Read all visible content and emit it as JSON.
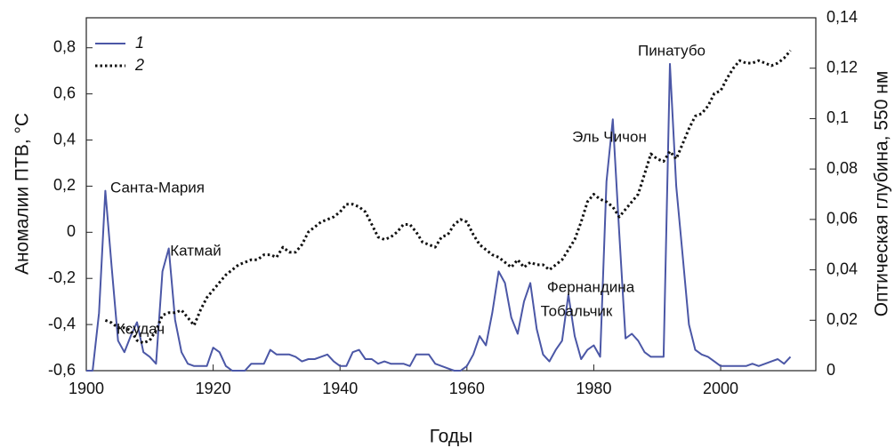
{
  "chart_data": {
    "type": "line",
    "xlabel": "Годы",
    "ylabel": "Аномалии ПТВ, °С",
    "y2label": "Оптическая глубина, 550 нм",
    "x": [
      1900,
      1901,
      1902,
      1903,
      1904,
      1905,
      1906,
      1907,
      1908,
      1909,
      1910,
      1911,
      1912,
      1913,
      1914,
      1915,
      1916,
      1917,
      1918,
      1919,
      1920,
      1921,
      1922,
      1923,
      1924,
      1925,
      1926,
      1927,
      1928,
      1929,
      1930,
      1931,
      1932,
      1933,
      1934,
      1935,
      1936,
      1937,
      1938,
      1939,
      1940,
      1941,
      1942,
      1943,
      1944,
      1945,
      1946,
      1947,
      1948,
      1949,
      1950,
      1951,
      1952,
      1953,
      1954,
      1955,
      1956,
      1957,
      1958,
      1959,
      1960,
      1961,
      1962,
      1963,
      1964,
      1965,
      1966,
      1967,
      1968,
      1969,
      1970,
      1971,
      1972,
      1973,
      1974,
      1975,
      1976,
      1977,
      1978,
      1979,
      1980,
      1981,
      1982,
      1983,
      1984,
      1985,
      1986,
      1987,
      1988,
      1989,
      1990,
      1991,
      1992,
      1993,
      1994,
      1995,
      1996,
      1997,
      1998,
      1999,
      2000,
      2001,
      2002,
      2003,
      2004,
      2005,
      2006,
      2007,
      2008,
      2009,
      2010,
      2011
    ],
    "series": [
      {
        "name": "1",
        "color": "#4b57a6",
        "values": [
          -0.6,
          -0.6,
          -0.35,
          0.18,
          -0.15,
          -0.47,
          -0.52,
          -0.45,
          -0.39,
          -0.52,
          -0.54,
          -0.57,
          -0.17,
          -0.07,
          -0.38,
          -0.52,
          -0.57,
          -0.58,
          -0.58,
          -0.58,
          -0.5,
          -0.52,
          -0.58,
          -0.6,
          -0.6,
          -0.6,
          -0.57,
          -0.57,
          -0.57,
          -0.51,
          -0.53,
          -0.53,
          -0.53,
          -0.54,
          -0.56,
          -0.55,
          -0.55,
          -0.54,
          -0.53,
          -0.56,
          -0.58,
          -0.58,
          -0.52,
          -0.51,
          -0.55,
          -0.55,
          -0.57,
          -0.56,
          -0.57,
          -0.57,
          -0.57,
          -0.58,
          -0.53,
          -0.53,
          -0.53,
          -0.57,
          -0.58,
          -0.59,
          -0.6,
          -0.6,
          -0.58,
          -0.53,
          -0.45,
          -0.49,
          -0.35,
          -0.17,
          -0.22,
          -0.37,
          -0.44,
          -0.3,
          -0.22,
          -0.42,
          -0.53,
          -0.56,
          -0.51,
          -0.47,
          -0.27,
          -0.45,
          -0.55,
          -0.51,
          -0.49,
          -0.54,
          0.22,
          0.49,
          0.0,
          -0.46,
          -0.44,
          -0.47,
          -0.52,
          -0.54,
          -0.54,
          -0.54,
          0.73,
          0.2,
          -0.1,
          -0.4,
          -0.51,
          -0.53,
          -0.54,
          -0.56,
          -0.58,
          -0.58,
          -0.58,
          -0.58,
          -0.58,
          -0.57,
          -0.58,
          -0.57,
          -0.56,
          -0.55,
          -0.57,
          -0.54
        ]
      },
      {
        "name": "2",
        "color": "#111111",
        "axis": "y2",
        "dashed": true,
        "values": [
          null,
          null,
          null,
          0.02,
          0.019,
          0.017,
          0.017,
          0.016,
          0.012,
          0.011,
          0.012,
          0.016,
          0.022,
          0.023,
          0.023,
          0.024,
          0.021,
          0.018,
          0.024,
          0.029,
          0.032,
          0.035,
          0.038,
          0.04,
          0.042,
          0.043,
          0.044,
          0.044,
          0.046,
          0.046,
          0.045,
          0.049,
          0.047,
          0.047,
          0.05,
          0.055,
          0.057,
          0.059,
          0.06,
          0.061,
          0.063,
          0.066,
          0.066,
          0.065,
          0.063,
          0.058,
          0.053,
          0.052,
          0.053,
          0.055,
          0.058,
          0.058,
          0.055,
          0.051,
          0.05,
          0.049,
          0.053,
          0.054,
          0.058,
          0.06,
          0.059,
          0.054,
          0.05,
          0.048,
          0.046,
          0.045,
          0.043,
          0.041,
          0.044,
          0.041,
          0.043,
          0.042,
          0.042,
          0.04,
          0.042,
          0.044,
          0.048,
          0.052,
          0.059,
          0.067,
          0.07,
          0.068,
          0.067,
          0.065,
          0.061,
          0.064,
          0.067,
          0.07,
          0.078,
          0.086,
          0.084,
          0.083,
          0.087,
          0.084,
          0.09,
          0.096,
          0.101,
          0.102,
          0.105,
          0.11,
          0.111,
          0.116,
          0.12,
          0.123,
          0.122,
          0.122,
          0.123,
          0.122,
          0.121,
          0.122,
          0.124,
          0.127
        ]
      }
    ],
    "xlim": [
      1900,
      2015
    ],
    "xticks": [
      1900,
      1920,
      1940,
      1960,
      1980,
      2000
    ],
    "ylim": [
      -0.6,
      0.93
    ],
    "yticks": [
      {
        "value": -0.6,
        "label": "-0,6"
      },
      {
        "value": -0.4,
        "label": "-0,4"
      },
      {
        "value": -0.2,
        "label": "-0,2"
      },
      0,
      {
        "value": 0.2,
        "label": "0,2"
      },
      {
        "value": 0.4,
        "label": "0,4"
      },
      {
        "value": 0.6,
        "label": "0,6"
      },
      {
        "value": 0.8,
        "label": "0,8"
      }
    ],
    "y2lim": [
      0,
      0.14
    ],
    "y2ticks": [
      0,
      {
        "value": 0.02,
        "label": "0,02"
      },
      {
        "value": 0.04,
        "label": "0,04"
      },
      {
        "value": 0.06,
        "label": "0,06"
      },
      {
        "value": 0.08,
        "label": "0,08"
      },
      {
        "value": 0.1,
        "label": "0,1"
      },
      {
        "value": 0.12,
        "label": "0,12"
      },
      {
        "value": 0.14,
        "label": "0,14"
      }
    ],
    "grid": false,
    "legend": "upper left",
    "annotations": [
      "Санта-Мария",
      "Катмай",
      "Ксудач",
      "Фернандина",
      "Тобальчик",
      "Эль Чичон",
      "Пинатубо"
    ]
  }
}
